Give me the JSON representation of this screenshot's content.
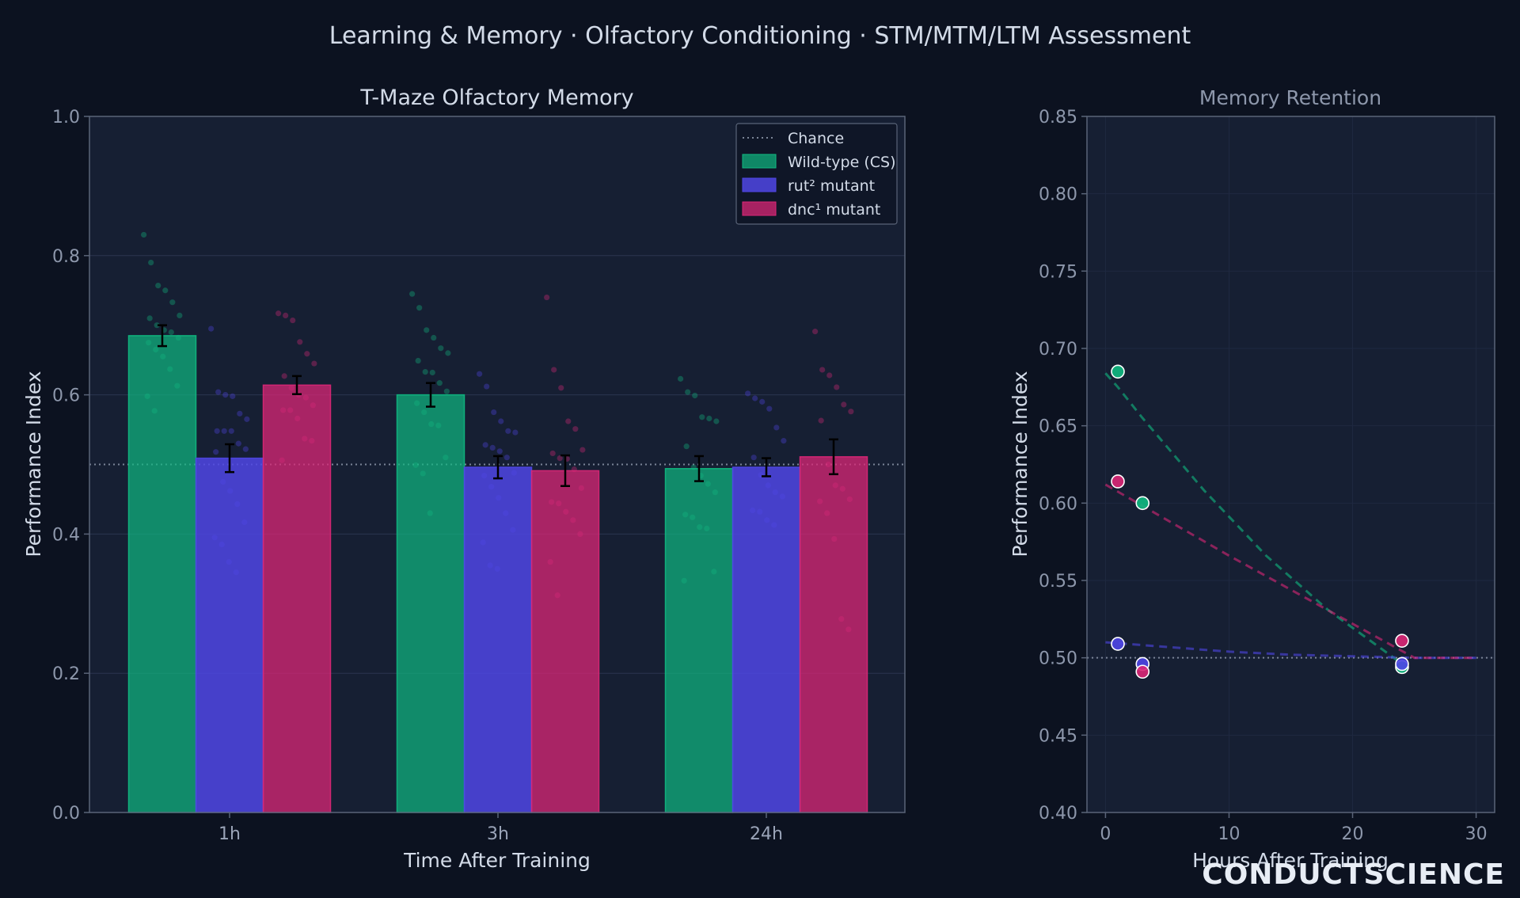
{
  "figure": {
    "suptitle": "Learning & Memory · Olfactory Conditioning · STM/MTM/LTM Assessment",
    "brand": "CONDUCTSCIENCE"
  },
  "colors": {
    "background": "#0c1220",
    "panel": "#161f33",
    "wildtype": "#10b981",
    "rut": "#4f46e5",
    "dnc": "#db2777",
    "chance_line": "#7b8597",
    "error_bar": "#000000"
  },
  "chart_data": [
    {
      "type": "bar",
      "title": "T-Maze Olfactory Memory",
      "xlabel": "Time After Training",
      "ylabel": "Performance Index",
      "ylim": [
        0,
        1.0
      ],
      "yticks": [
        0.0,
        0.2,
        0.4,
        0.6,
        0.8,
        1.0
      ],
      "categories": [
        "1h",
        "3h",
        "24h"
      ],
      "chance_level": 0.5,
      "chance_label": "Chance",
      "grid": true,
      "legend_placement": "top-right",
      "series": [
        {
          "name": "Wild-type (CS)",
          "color": "#10b981",
          "values": [
            0.685,
            0.6,
            0.494
          ],
          "errors": [
            0.015,
            0.017,
            0.018
          ],
          "points": [
            [
              0.83,
              0.79,
              0.757,
              0.75,
              0.733,
              0.714,
              0.71,
              0.7,
              0.693,
              0.69,
              0.682,
              0.675,
              0.665,
              0.655,
              0.637,
              0.613,
              0.598,
              0.577
            ],
            [
              0.745,
              0.725,
              0.693,
              0.682,
              0.667,
              0.66,
              0.649,
              0.633,
              0.632,
              0.617,
              0.605,
              0.588,
              0.575,
              0.558,
              0.556,
              0.51,
              0.499,
              0.487,
              0.43
            ],
            [
              0.623,
              0.604,
              0.599,
              0.568,
              0.566,
              0.562,
              0.526,
              0.496,
              0.484,
              0.472,
              0.46,
              0.428,
              0.424,
              0.41,
              0.408,
              0.346,
              0.333
            ]
          ]
        },
        {
          "name": "rut² mutant",
          "color": "#4f46e5",
          "values": [
            0.509,
            0.496,
            0.496
          ],
          "errors": [
            0.02,
            0.016,
            0.013
          ],
          "points": [
            [
              0.695,
              0.604,
              0.6,
              0.598,
              0.573,
              0.565,
              0.548,
              0.548,
              0.548,
              0.53,
              0.522,
              0.518,
              0.475,
              0.462,
              0.443,
              0.417,
              0.395,
              0.385,
              0.36,
              0.345
            ],
            [
              0.63,
              0.612,
              0.575,
              0.562,
              0.548,
              0.546,
              0.528,
              0.524,
              0.519,
              0.51,
              0.488,
              0.484,
              0.468,
              0.452,
              0.43,
              0.406,
              0.388,
              0.355,
              0.35
            ],
            [
              0.602,
              0.595,
              0.59,
              0.58,
              0.553,
              0.534,
              0.51,
              0.485,
              0.47,
              0.46,
              0.454,
              0.434,
              0.432,
              0.42,
              0.413
            ]
          ]
        },
        {
          "name": "dnc¹ mutant",
          "color": "#db2777",
          "values": [
            0.614,
            0.491,
            0.511
          ],
          "errors": [
            0.013,
            0.022,
            0.025
          ],
          "points": [
            [
              0.717,
              0.714,
              0.707,
              0.676,
              0.659,
              0.645,
              0.627,
              0.61,
              0.6,
              0.596,
              0.585,
              0.578,
              0.578,
              0.566,
              0.537,
              0.534,
              0.506
            ],
            [
              0.74,
              0.636,
              0.61,
              0.562,
              0.551,
              0.521,
              0.516,
              0.509,
              0.508,
              0.493,
              0.466,
              0.446,
              0.444,
              0.432,
              0.42,
              0.4,
              0.36,
              0.312
            ],
            [
              0.691,
              0.636,
              0.628,
              0.611,
              0.586,
              0.576,
              0.563,
              0.5,
              0.47,
              0.465,
              0.45,
              0.447,
              0.43,
              0.393,
              0.278,
              0.263
            ]
          ]
        }
      ]
    },
    {
      "type": "scatter",
      "title": "Memory Retention",
      "xlabel": "Hours After Training",
      "ylabel": "Performance Index",
      "xlim": [
        -1.5,
        31.5
      ],
      "ylim": [
        0.4,
        0.85
      ],
      "xticks": [
        0,
        10,
        20,
        30
      ],
      "yticks": [
        0.4,
        0.45,
        0.5,
        0.55,
        0.6,
        0.65,
        0.7,
        0.75,
        0.8,
        0.85
      ],
      "chance_level": 0.5,
      "grid": true,
      "series": [
        {
          "name": "Wild-type (CS)",
          "color": "#10b981",
          "x": [
            1,
            3,
            24
          ],
          "y": [
            0.685,
            0.6,
            0.494
          ],
          "fit_x": [
            0,
            1,
            3,
            8,
            13,
            18,
            23,
            24
          ],
          "fit_y": [
            0.684,
            0.675,
            0.655,
            0.608,
            0.566,
            0.531,
            0.502,
            0.496
          ]
        },
        {
          "name": "rut² mutant",
          "color": "#4f46e5",
          "x": [
            1,
            3,
            24
          ],
          "y": [
            0.509,
            0.496,
            0.496
          ],
          "fit_x": [
            0,
            5,
            10,
            15,
            20,
            25,
            30
          ],
          "fit_y": [
            0.51,
            0.507,
            0.504,
            0.502,
            0.501,
            0.5,
            0.5
          ]
        },
        {
          "name": "dnc¹ mutant",
          "color": "#db2777",
          "x": [
            1,
            3,
            24
          ],
          "y": [
            0.614,
            0.491,
            0.511
          ],
          "fit_x": [
            0,
            5,
            10,
            15,
            20,
            25,
            30
          ],
          "fit_y": [
            0.612,
            0.589,
            0.566,
            0.544,
            0.522,
            0.5,
            0.5
          ]
        }
      ]
    }
  ]
}
